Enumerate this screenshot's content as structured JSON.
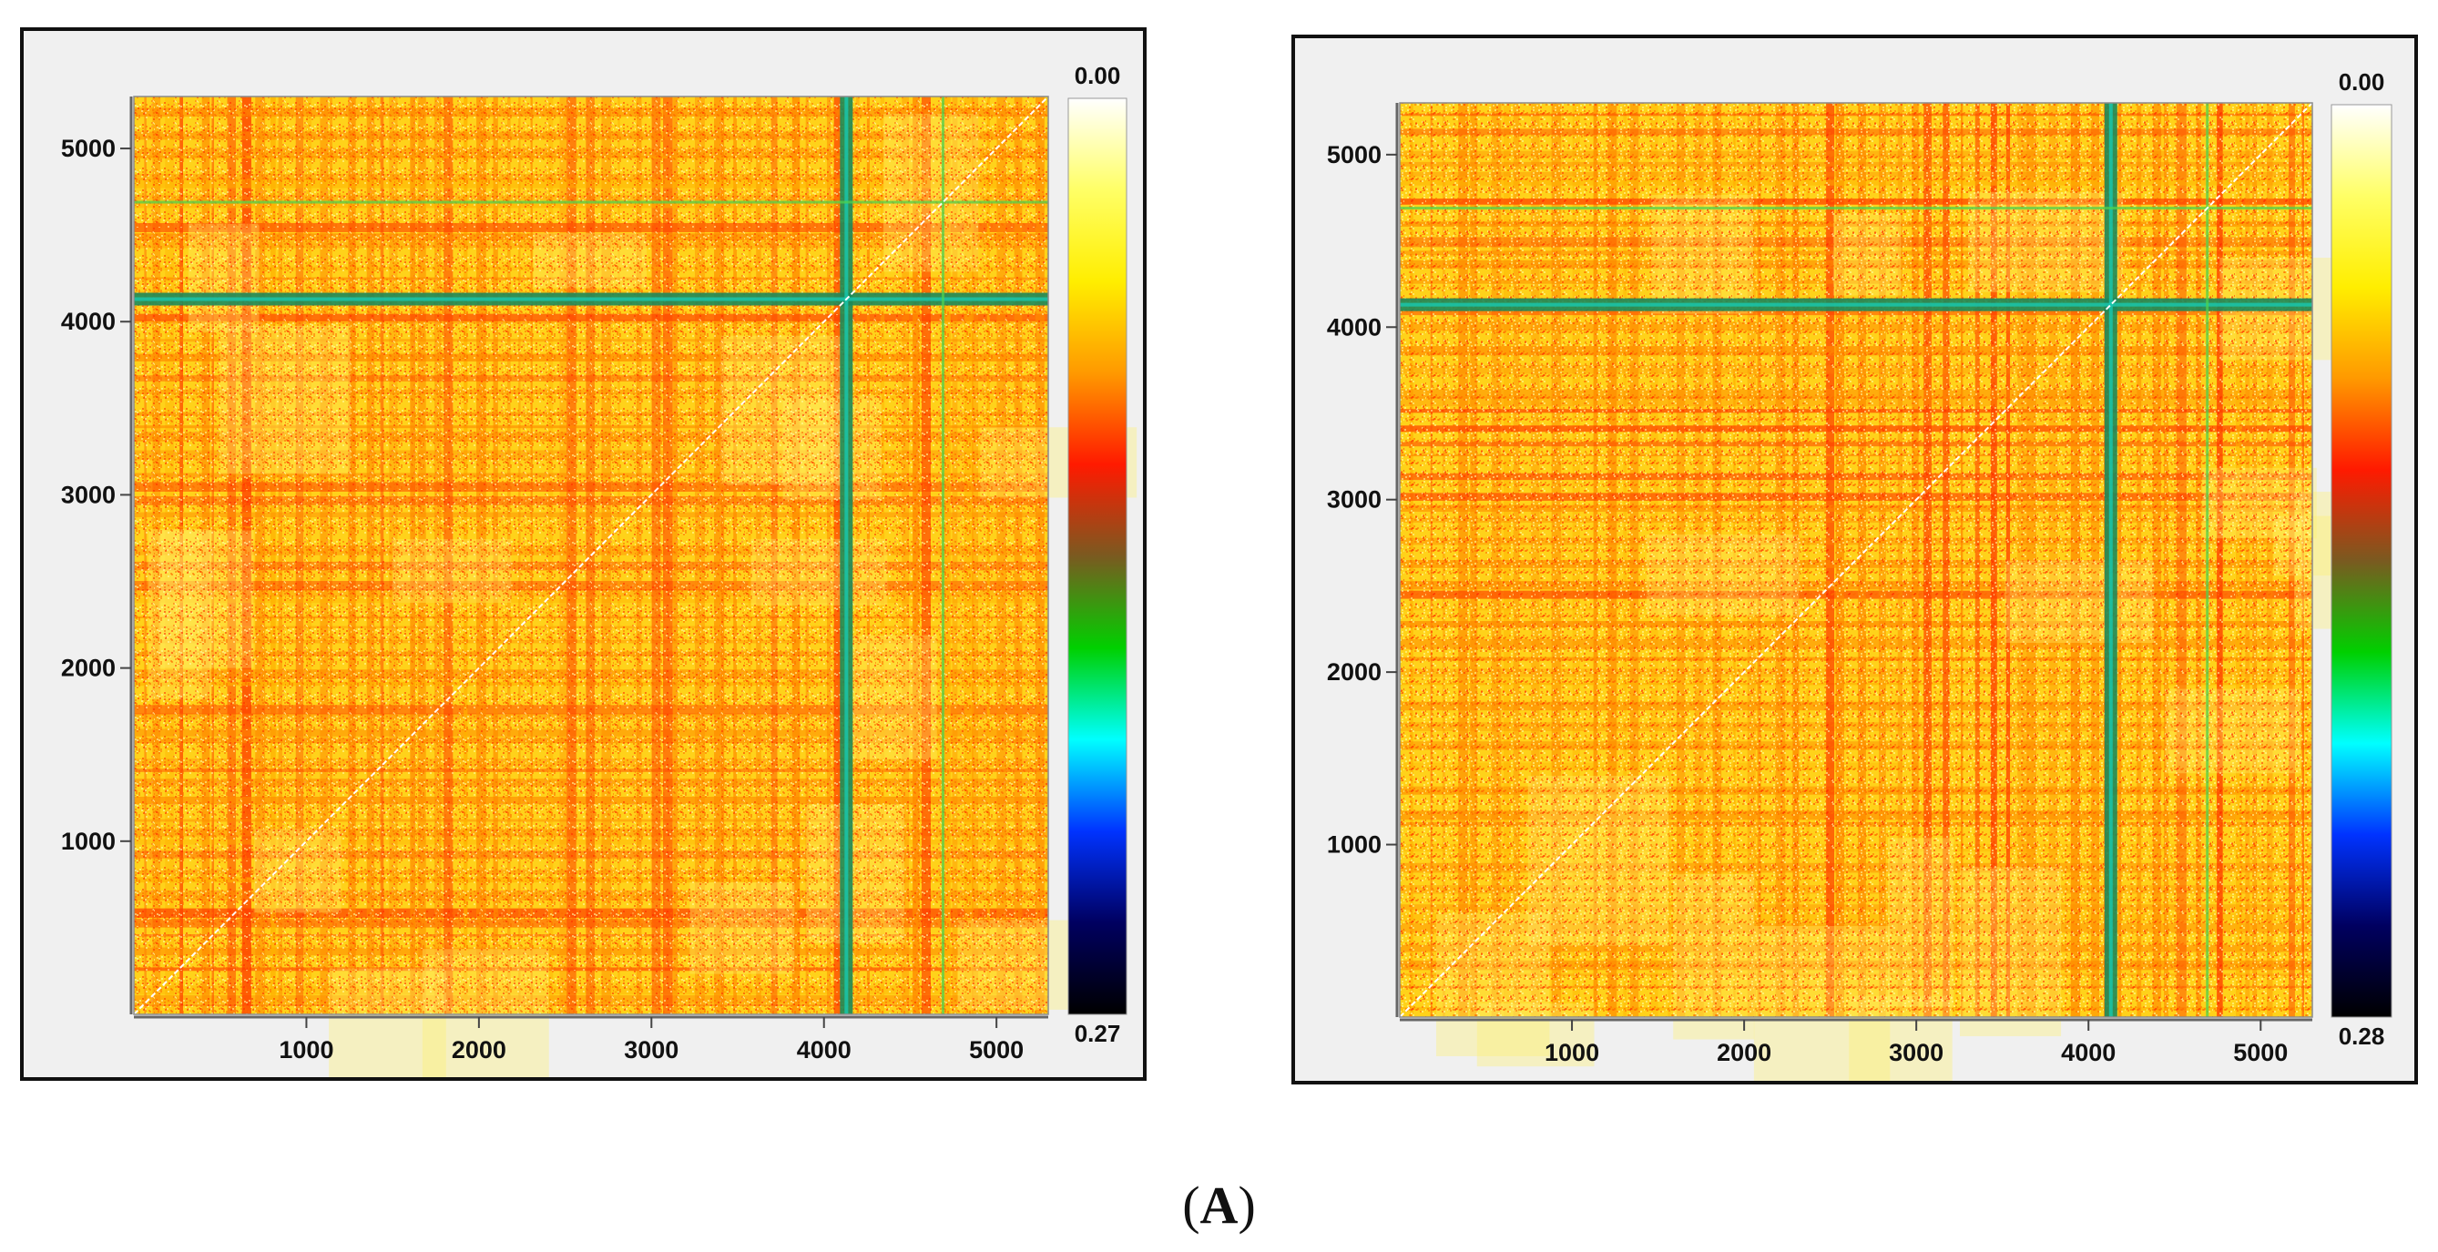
{
  "chart_data": [
    {
      "type": "heatmap",
      "title": "",
      "xlabel": "",
      "ylabel": "",
      "xlim": [
        0,
        5300
      ],
      "ylim": [
        0,
        5300
      ],
      "x_ticks": [
        1000,
        2000,
        3000,
        4000,
        5000
      ],
      "y_ticks": [
        1000,
        2000,
        3000,
        4000,
        5000
      ],
      "x_tick_labels": [
        "1000",
        "2000",
        "3000",
        "4000",
        "5000"
      ],
      "y_tick_labels": [
        "1000",
        "2000",
        "3000",
        "4000",
        "5000"
      ],
      "colorbar": {
        "min_label": "0.00",
        "max_label": "0.27",
        "min": 0.0,
        "max": 0.27,
        "colormap": [
          "#ffffff",
          "#ffff66",
          "#ffee00",
          "#ff9900",
          "#ff1a00",
          "#7a5a20",
          "#00d000",
          "#00ffff",
          "#0033ff",
          "#000060",
          "#000000"
        ]
      },
      "description_bands": [
        4130,
        4700
      ],
      "dark_band_positions": [
        4130,
        4690
      ],
      "colors": {
        "background": "#f0f0f0",
        "border": "#111111"
      }
    },
    {
      "type": "heatmap",
      "title": "",
      "xlabel": "",
      "ylabel": "",
      "xlim": [
        0,
        5300
      ],
      "ylim": [
        0,
        5300
      ],
      "x_ticks": [
        1000,
        2000,
        3000,
        4000,
        5000
      ],
      "y_ticks": [
        1000,
        2000,
        3000,
        4000,
        5000
      ],
      "x_tick_labels": [
        "1000",
        "2000",
        "3000",
        "4000",
        "5000"
      ],
      "y_tick_labels": [
        "1000",
        "2000",
        "3000",
        "4000",
        "5000"
      ],
      "colorbar": {
        "min_label": "0.00",
        "max_label": "0.28",
        "min": 0.0,
        "max": 0.28,
        "colormap": [
          "#ffffff",
          "#ffff66",
          "#ffee00",
          "#ff9900",
          "#ff1a00",
          "#7a5a20",
          "#00d000",
          "#00ffff",
          "#0033ff",
          "#000060",
          "#000000"
        ]
      },
      "description_bands": [
        4130,
        4700
      ],
      "dark_band_positions": [
        4130,
        4690
      ],
      "colors": {
        "background": "#f0f0f0",
        "border": "#111111"
      }
    }
  ],
  "caption": {
    "open": "(",
    "letter": "A",
    "close": ")"
  }
}
